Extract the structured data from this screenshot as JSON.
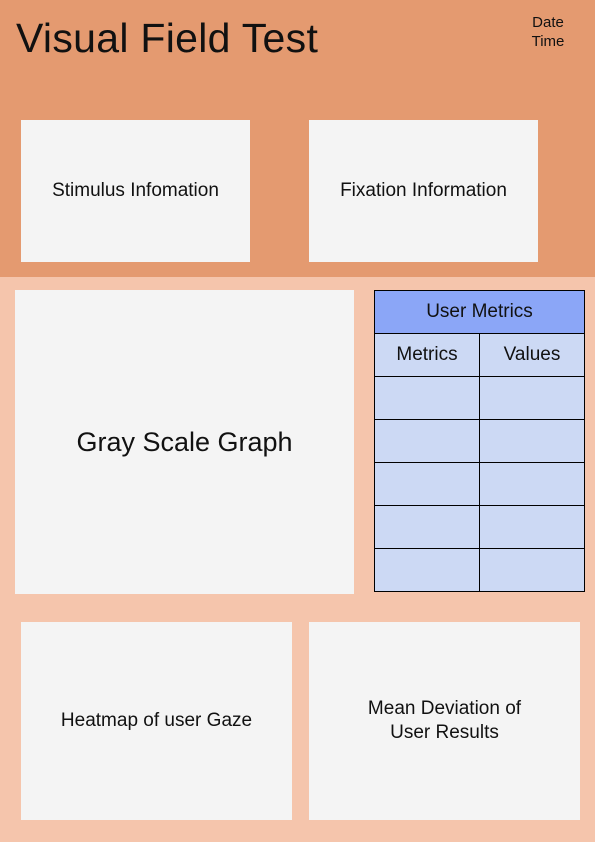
{
  "header": {
    "title": "Visual Field Test",
    "date_label": "Date",
    "time_label": "Time"
  },
  "panels": {
    "stimulus": "Stimulus Infomation",
    "fixation": "Fixation Information",
    "gray_scale": "Gray Scale Graph",
    "heatmap": "Heatmap of user Gaze",
    "mean_deviation_line1": "Mean Deviation of",
    "mean_deviation_line2": "User Results"
  },
  "metrics_table": {
    "title": "User Metrics",
    "columns": [
      "Metrics",
      "Values"
    ],
    "rows": [
      [
        "",
        ""
      ],
      [
        "",
        ""
      ],
      [
        "",
        ""
      ],
      [
        "",
        ""
      ],
      [
        "",
        ""
      ]
    ]
  },
  "colors": {
    "header_bg": "#e49a70",
    "body_bg": "#f5c5ac",
    "card_bg": "#f4f4f4",
    "table_header_bg": "#8ba6f7",
    "table_cell_bg": "#ccd9f4"
  }
}
